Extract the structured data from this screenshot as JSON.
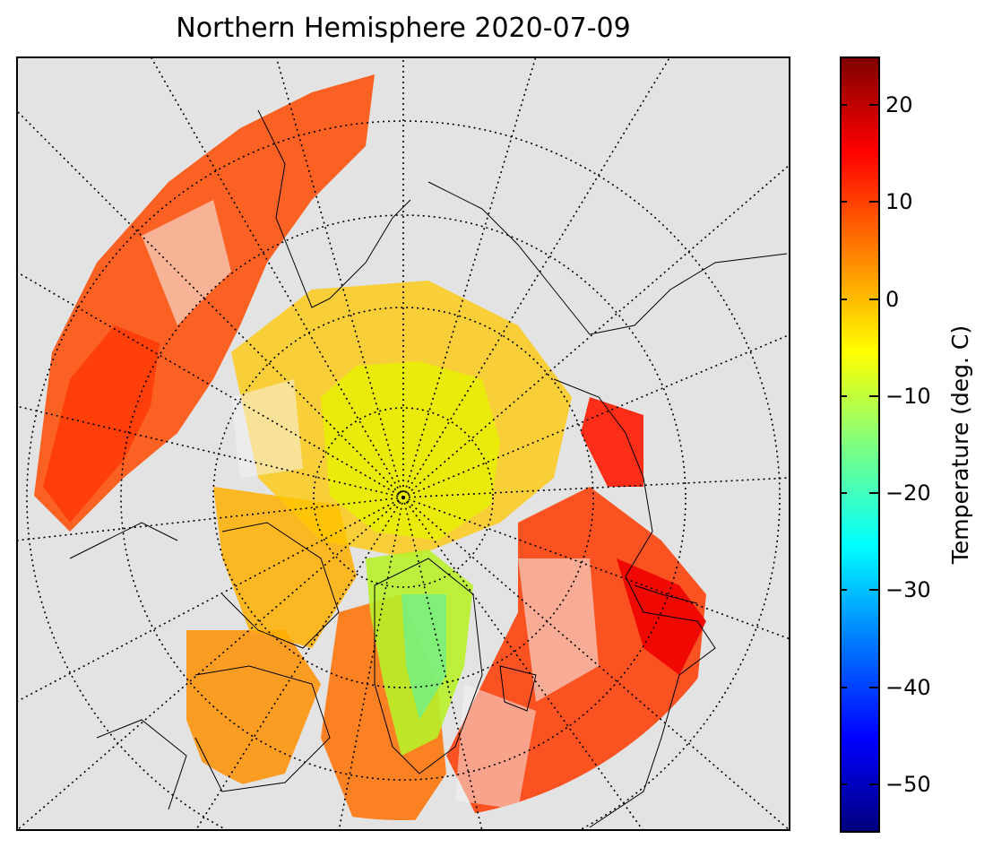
{
  "title": "Northern Hemisphere 2020-07-09",
  "map": {
    "projection": "north-polar-stereographic",
    "variable": "surface temperature",
    "background_color": "#e3e3e3",
    "coastline_color": "#000000",
    "graticule_style": "dotted"
  },
  "colorbar": {
    "label": "Temperature (deg. C)",
    "colormap": "jet",
    "range": [
      -55,
      25
    ],
    "ticks": [
      {
        "value": 20,
        "label": "20"
      },
      {
        "value": 10,
        "label": "10"
      },
      {
        "value": 0,
        "label": "0"
      },
      {
        "value": -10,
        "label": "−10"
      },
      {
        "value": -20,
        "label": "−20"
      },
      {
        "value": -30,
        "label": "−30"
      },
      {
        "value": -40,
        "label": "−40"
      },
      {
        "value": -50,
        "label": "−50"
      }
    ],
    "colors": {
      "min": "#00007f",
      "blue": "#0000ff",
      "cyan": "#00ffff",
      "yellow": "#ffff00",
      "red": "#ff0000",
      "max": "#7f0000"
    }
  }
}
